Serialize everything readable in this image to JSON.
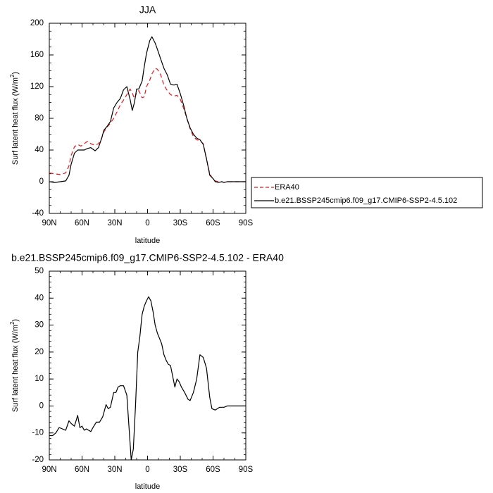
{
  "chart_data": [
    {
      "type": "line",
      "title": "JJA",
      "xlabel": "latitude",
      "ylabel_main": "Surf latent heat flux (W/m",
      "ylabel_sup": "2",
      "ylabel_close": ")",
      "xlim": [
        90,
        -90
      ],
      "ylim": [
        -40,
        200
      ],
      "xticks": [
        90,
        60,
        30,
        0,
        -30,
        -60,
        -90
      ],
      "xtick_labels": [
        "90N",
        "60N",
        "30N",
        "0",
        "30S",
        "60S",
        "90S"
      ],
      "yticks": [
        -40,
        0,
        40,
        80,
        120,
        160,
        200
      ],
      "ytick_labels": [
        "-40",
        "0",
        "40",
        "80",
        "120",
        "160",
        "200"
      ],
      "legend_position": "right",
      "series": [
        {
          "name": "ERA40",
          "color": "#e8141c",
          "dash": "dashed",
          "x": [
            90,
            85,
            80,
            75,
            72,
            70,
            67,
            64,
            61,
            58,
            55,
            52,
            48,
            45,
            42,
            40,
            37,
            34,
            31,
            28,
            25,
            22,
            19,
            16,
            14,
            12,
            10,
            8,
            5,
            3,
            1,
            -2,
            -4,
            -7,
            -9,
            -12,
            -15,
            -18,
            -21,
            -24,
            -27,
            -30,
            -33,
            -36,
            -39,
            -42,
            -45,
            -48,
            -51,
            -54,
            -57,
            -60,
            -62,
            -65,
            -68,
            -70,
            -73,
            -76,
            -80,
            -85,
            -90
          ],
          "y": [
            11,
            10,
            9,
            11,
            20,
            33,
            44,
            47,
            45,
            48,
            51,
            48,
            46,
            48,
            55,
            63,
            69,
            74,
            80,
            88,
            97,
            103,
            110,
            117,
            112,
            105,
            112,
            115,
            106,
            107,
            120,
            128,
            136,
            143,
            142,
            135,
            122,
            115,
            110,
            108,
            109,
            104,
            93,
            80,
            67,
            57,
            53,
            52,
            48,
            28,
            10,
            3,
            1,
            0,
            0,
            -1,
            0,
            0,
            0,
            0,
            0
          ]
        },
        {
          "name": "b.e21.BSSP245cmip6.f09_g17.CMIP6-SSP2-4.5.102",
          "color": "#000000",
          "dash": "solid",
          "x": [
            90,
            85,
            80,
            75,
            72,
            70,
            67,
            64,
            61,
            58,
            55,
            52,
            48,
            45,
            42,
            40,
            37,
            34,
            31,
            28,
            25,
            22,
            19,
            16,
            14,
            12,
            10,
            8,
            5,
            3,
            1,
            -2,
            -4,
            -7,
            -9,
            -12,
            -15,
            -18,
            -21,
            -24,
            -27,
            -30,
            -33,
            -36,
            -39,
            -42,
            -45,
            -48,
            -51,
            -54,
            -57,
            -60,
            -62,
            -65,
            -68,
            -70,
            -73,
            -76,
            -80,
            -85,
            -90
          ],
          "y": [
            0,
            -1,
            0,
            1,
            8,
            22,
            36,
            40,
            40,
            40,
            42,
            43,
            39,
            43,
            55,
            65,
            70,
            76,
            93,
            100,
            105,
            116,
            120,
            104,
            90,
            100,
            117,
            117,
            127,
            145,
            162,
            178,
            183,
            175,
            167,
            155,
            143,
            135,
            123,
            122,
            123,
            111,
            97,
            80,
            68,
            60,
            55,
            53,
            47,
            29,
            8,
            4,
            0,
            -1,
            0,
            -1,
            0,
            0,
            0,
            0,
            0
          ]
        }
      ]
    },
    {
      "type": "line",
      "title": "b.e21.BSSP245cmip6.f09_g17.CMIP6-SSP2-4.5.102 - ERA40",
      "xlabel": "latitude",
      "ylabel_main": "Surf latent heat flux (W/m",
      "ylabel_sup": "2",
      "ylabel_close": ")",
      "xlim": [
        90,
        -90
      ],
      "ylim": [
        -20,
        50
      ],
      "xticks": [
        90,
        60,
        30,
        0,
        -30,
        -60,
        -90
      ],
      "xtick_labels": [
        "90N",
        "60N",
        "30N",
        "0",
        "30S",
        "60S",
        "90S"
      ],
      "yticks": [
        -20,
        -10,
        0,
        10,
        20,
        30,
        40,
        50
      ],
      "ytick_labels": [
        "-20",
        "-10",
        "0",
        "10",
        "20",
        "30",
        "40",
        "50"
      ],
      "series": [
        {
          "color": "#000000",
          "dash": "solid",
          "x": [
            90,
            87,
            84,
            81,
            78,
            75,
            72,
            70,
            67,
            64,
            62,
            60,
            58,
            56,
            54,
            52,
            50,
            47,
            44,
            41,
            38,
            36,
            34,
            31,
            29,
            27,
            25,
            22,
            19,
            17,
            15,
            13,
            11,
            9,
            7,
            6,
            5,
            3,
            1,
            -1,
            -3,
            -5,
            -7,
            -9,
            -11,
            -13,
            -15,
            -17,
            -19,
            -21,
            -23,
            -25,
            -27,
            -29,
            -31,
            -34,
            -37,
            -39,
            -42,
            -45,
            -48,
            -51,
            -54,
            -57,
            -59,
            -62,
            -64,
            -66,
            -68,
            -70,
            -73,
            -76,
            -78,
            -80,
            -83,
            -86,
            -90
          ],
          "y": [
            -11,
            -11,
            -10,
            -8,
            -8.5,
            -9,
            -5.5,
            -6.5,
            -7.5,
            -3.5,
            -8,
            -7.5,
            -9,
            -8.5,
            -9,
            -9.5,
            -8,
            -6,
            -6,
            -4,
            0.5,
            -1,
            -0.5,
            5,
            5,
            7,
            7.5,
            7.5,
            4,
            -8,
            -20,
            -16,
            0,
            20,
            26,
            30,
            34,
            37,
            39,
            40.5,
            39,
            35,
            30,
            27,
            25,
            23,
            19,
            17,
            15.5,
            15,
            11,
            7,
            10,
            9,
            7,
            5,
            2.5,
            2,
            5,
            10,
            19,
            18,
            14,
            3,
            -1,
            -1.5,
            -1,
            -0.5,
            -0.5,
            -0.5,
            0,
            0,
            0,
            0,
            0,
            0,
            0
          ]
        }
      ]
    }
  ]
}
